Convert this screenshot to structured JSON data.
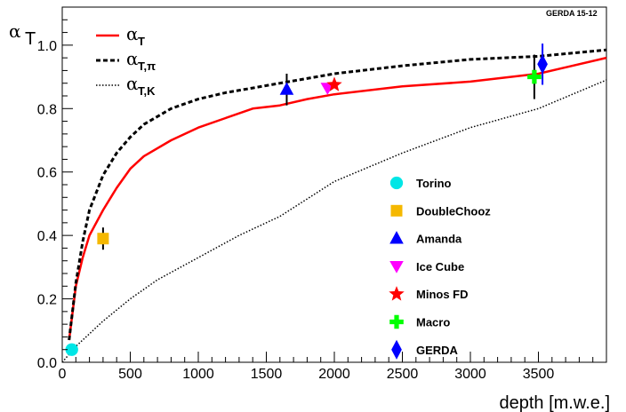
{
  "chart_data": {
    "type": "scatter",
    "title": "",
    "corner_label": "GERDA 15-12",
    "xlabel": "depth [m.w.e.]",
    "ylabel": {
      "symbol": "α",
      "subscript": "T"
    },
    "xlim": [
      0,
      4000
    ],
    "ylim": [
      0,
      1.12
    ],
    "x_ticks": [
      0,
      500,
      1000,
      1500,
      2000,
      2500,
      3000,
      3500
    ],
    "x_tick_labels": [
      "0",
      "500",
      "1000",
      "1500",
      "2000",
      "2500",
      "3000",
      "3500"
    ],
    "y_ticks": [
      0,
      0.2,
      0.4,
      0.6,
      0.8,
      1.0
    ],
    "y_tick_labels": [
      "0.0",
      "0.2",
      "0.4",
      "0.6",
      "0.8",
      "1.0"
    ],
    "grid": false,
    "curves": [
      {
        "name": "α_T",
        "symbol": "α",
        "sub": "T",
        "style": "solid",
        "color": "#ff0000",
        "points": [
          [
            50,
            0.07
          ],
          [
            100,
            0.24
          ],
          [
            150,
            0.33
          ],
          [
            200,
            0.4
          ],
          [
            300,
            0.48
          ],
          [
            400,
            0.55
          ],
          [
            500,
            0.61
          ],
          [
            600,
            0.65
          ],
          [
            800,
            0.7
          ],
          [
            1000,
            0.74
          ],
          [
            1200,
            0.77
          ],
          [
            1400,
            0.8
          ],
          [
            1600,
            0.81
          ],
          [
            1800,
            0.83
          ],
          [
            2000,
            0.845
          ],
          [
            2500,
            0.87
          ],
          [
            3000,
            0.885
          ],
          [
            3500,
            0.91
          ],
          [
            4000,
            0.96
          ]
        ]
      },
      {
        "name": "α_T,π",
        "symbol": "α",
        "sub": "T,π",
        "style": "dashed",
        "color": "#000000",
        "points": [
          [
            50,
            0.07
          ],
          [
            100,
            0.25
          ],
          [
            150,
            0.38
          ],
          [
            200,
            0.48
          ],
          [
            300,
            0.59
          ],
          [
            400,
            0.66
          ],
          [
            500,
            0.71
          ],
          [
            600,
            0.75
          ],
          [
            800,
            0.8
          ],
          [
            1000,
            0.83
          ],
          [
            1200,
            0.85
          ],
          [
            1400,
            0.865
          ],
          [
            1600,
            0.88
          ],
          [
            1800,
            0.895
          ],
          [
            2000,
            0.91
          ],
          [
            2500,
            0.935
          ],
          [
            3000,
            0.955
          ],
          [
            3500,
            0.965
          ],
          [
            4000,
            0.985
          ]
        ]
      },
      {
        "name": "α_T,K",
        "symbol": "α",
        "sub": "T,K",
        "style": "dotted",
        "color": "#000000",
        "points": [
          [
            0,
            0.0
          ],
          [
            100,
            0.05
          ],
          [
            200,
            0.09
          ],
          [
            300,
            0.13
          ],
          [
            500,
            0.2
          ],
          [
            700,
            0.26
          ],
          [
            1000,
            0.33
          ],
          [
            1300,
            0.4
          ],
          [
            1600,
            0.46
          ],
          [
            2000,
            0.57
          ],
          [
            2500,
            0.66
          ],
          [
            3000,
            0.74
          ],
          [
            3500,
            0.8
          ],
          [
            4000,
            0.89
          ]
        ]
      }
    ],
    "series": [
      {
        "name": "Torino",
        "marker": "circle",
        "color": "#00e6e6",
        "points": [
          {
            "x": 70,
            "y": 0.04,
            "err": 0.0
          }
        ]
      },
      {
        "name": "DoubleChooz",
        "marker": "square",
        "color": "#f5b800",
        "points": [
          {
            "x": 300,
            "y": 0.39,
            "err": 0.035
          }
        ]
      },
      {
        "name": "Amanda",
        "marker": "triangle-up",
        "color": "#0000ff",
        "points": [
          {
            "x": 1650,
            "y": 0.86,
            "err": 0.05
          }
        ]
      },
      {
        "name": "Ice Cube",
        "marker": "triangle-down",
        "color": "#ff00ff",
        "points": [
          {
            "x": 1950,
            "y": 0.865,
            "err": 0.0
          }
        ]
      },
      {
        "name": "Minos FD",
        "marker": "star",
        "color": "#ff0000",
        "points": [
          {
            "x": 2000,
            "y": 0.875,
            "err": 0.0
          }
        ]
      },
      {
        "name": "Macro",
        "marker": "cross",
        "color": "#00ff00",
        "points": [
          {
            "x": 3470,
            "y": 0.9,
            "err": 0.07
          }
        ]
      },
      {
        "name": "GERDA",
        "marker": "diamond",
        "color": "#0000ff",
        "points": [
          {
            "x": 3530,
            "y": 0.94,
            "err": 0.065
          }
        ]
      }
    ],
    "legend_position": "lower-right"
  }
}
